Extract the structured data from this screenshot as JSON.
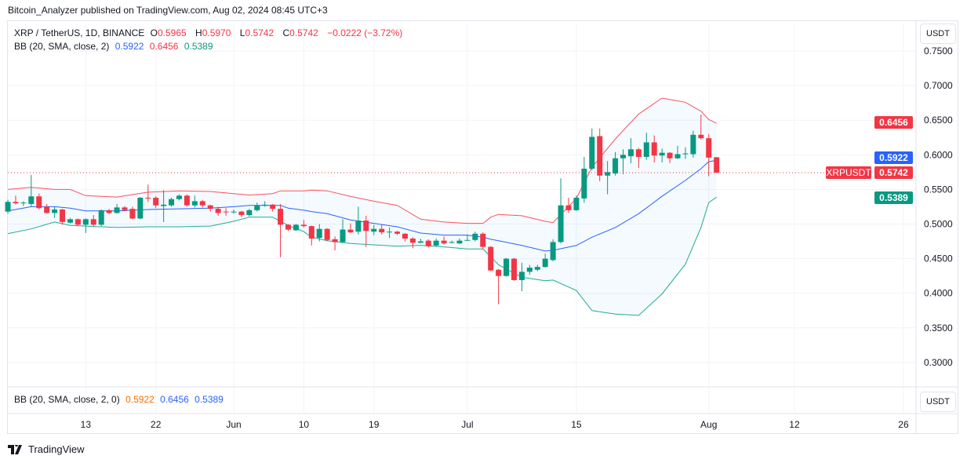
{
  "publisher": "Bitcoin_Analyzer published on TradingView.com, Aug 02, 2024 08:45 UTC+3",
  "legend": {
    "symbol": "XRP / TetherUS, 1D, BINANCE",
    "o_label": "O",
    "o": "0.5965",
    "h_label": "H",
    "h": "0.5970",
    "l_label": "L",
    "l": "0.5742",
    "c_label": "C",
    "c": "0.5742",
    "change": "−0.0222 (−3.72%)",
    "bb_name": "BB (20, SMA, close, 2)",
    "bb_basis": "0.5922",
    "bb_upper": "0.6456",
    "bb_lower": "0.5389"
  },
  "lower_pane": {
    "bb_name": "BB (20, SMA, close, 2, 0)",
    "bb_basis": "0.5922",
    "bb_upper": "0.6456",
    "bb_lower": "0.5389"
  },
  "currency_button": "USDT",
  "symbol_label": "XRPUSDT",
  "price_labels": {
    "upper": "0.6456",
    "basis": "0.5922",
    "last": "0.5742",
    "lower": "0.5389"
  },
  "footer_brand": "TradingView",
  "colors": {
    "up": "#089981",
    "down": "#f23645",
    "basis": "#2962ff",
    "upper": "#f7525f",
    "lower": "#22ab94",
    "grid": "#f0f3fa"
  },
  "chart_data": {
    "type": "candlestick",
    "title": "XRP / TetherUS, 1D, BINANCE",
    "ylim": [
      0.27,
      0.77
    ],
    "grid": true,
    "yticks": [
      "0.7500",
      "0.7000",
      "0.6500",
      "0.6000",
      "0.5500",
      "0.5000",
      "0.4500",
      "0.4000",
      "0.3500",
      "0.3000"
    ],
    "xticks": [
      {
        "date": "2024-05-13",
        "label": "13"
      },
      {
        "date": "2024-05-22",
        "label": "22"
      },
      {
        "date": "2024-06-01",
        "label": "Jun"
      },
      {
        "date": "2024-06-10",
        "label": "10"
      },
      {
        "date": "2024-06-19",
        "label": "19"
      },
      {
        "date": "2024-07-01",
        "label": "Jul"
      },
      {
        "date": "2024-07-15",
        "label": "15"
      },
      {
        "date": "2024-08-01",
        "label": "Aug"
      },
      {
        "date": "2024-08-12",
        "label": "12"
      },
      {
        "date": "2024-08-26",
        "label": "26"
      }
    ],
    "last_price": 0.5742,
    "candles_columns": [
      "date",
      "open",
      "high",
      "low",
      "close"
    ],
    "candles": [
      [
        "2024-05-03",
        0.518,
        0.535,
        0.515,
        0.532
      ],
      [
        "2024-05-04",
        0.532,
        0.541,
        0.528,
        0.53
      ],
      [
        "2024-05-05",
        0.53,
        0.533,
        0.526,
        0.531
      ],
      [
        "2024-05-06",
        0.529,
        0.571,
        0.525,
        0.54
      ],
      [
        "2024-05-07",
        0.54,
        0.544,
        0.521,
        0.523
      ],
      [
        "2024-05-08",
        0.525,
        0.529,
        0.515,
        0.516
      ],
      [
        "2024-05-09",
        0.516,
        0.525,
        0.509,
        0.521
      ],
      [
        "2024-05-10",
        0.521,
        0.522,
        0.499,
        0.503
      ],
      [
        "2024-05-11",
        0.502,
        0.509,
        0.501,
        0.507
      ],
      [
        "2024-05-12",
        0.507,
        0.508,
        0.497,
        0.499
      ],
      [
        "2024-05-13",
        0.499,
        0.508,
        0.487,
        0.507
      ],
      [
        "2024-05-14",
        0.507,
        0.513,
        0.497,
        0.499
      ],
      [
        "2024-05-15",
        0.499,
        0.521,
        0.497,
        0.52
      ],
      [
        "2024-05-16",
        0.52,
        0.522,
        0.514,
        0.516
      ],
      [
        "2024-05-17",
        0.516,
        0.529,
        0.515,
        0.524
      ],
      [
        "2024-05-18",
        0.524,
        0.526,
        0.518,
        0.52
      ],
      [
        "2024-05-19",
        0.522,
        0.525,
        0.507,
        0.508
      ],
      [
        "2024-05-20",
        0.508,
        0.539,
        0.507,
        0.538
      ],
      [
        "2024-05-21",
        0.538,
        0.557,
        0.532,
        0.537
      ],
      [
        "2024-05-22",
        0.538,
        0.54,
        0.523,
        0.527
      ],
      [
        "2024-05-23",
        0.526,
        0.549,
        0.503,
        0.528
      ],
      [
        "2024-05-24",
        0.527,
        0.538,
        0.525,
        0.536
      ],
      [
        "2024-05-25",
        0.536,
        0.543,
        0.534,
        0.541
      ],
      [
        "2024-05-26",
        0.541,
        0.543,
        0.525,
        0.527
      ],
      [
        "2024-05-27",
        0.527,
        0.541,
        0.524,
        0.533
      ],
      [
        "2024-05-28",
        0.533,
        0.535,
        0.524,
        0.527
      ],
      [
        "2024-05-29",
        0.527,
        0.528,
        0.518,
        0.522
      ],
      [
        "2024-05-30",
        0.522,
        0.525,
        0.512,
        0.516
      ],
      [
        "2024-05-31",
        0.518,
        0.523,
        0.512,
        0.517
      ],
      [
        "2024-06-01",
        0.517,
        0.521,
        0.515,
        0.518
      ],
      [
        "2024-06-02",
        0.518,
        0.519,
        0.51,
        0.513
      ],
      [
        "2024-06-03",
        0.513,
        0.522,
        0.511,
        0.52
      ],
      [
        "2024-06-04",
        0.52,
        0.531,
        0.518,
        0.527
      ],
      [
        "2024-06-05",
        0.527,
        0.533,
        0.525,
        0.528
      ],
      [
        "2024-06-06",
        0.528,
        0.529,
        0.518,
        0.522
      ],
      [
        "2024-06-07",
        0.522,
        0.529,
        0.452,
        0.499
      ],
      [
        "2024-06-08",
        0.499,
        0.5,
        0.49,
        0.492
      ],
      [
        "2024-06-09",
        0.491,
        0.5,
        0.49,
        0.499
      ],
      [
        "2024-06-10",
        0.499,
        0.506,
        0.495,
        0.497
      ],
      [
        "2024-06-11",
        0.497,
        0.498,
        0.469,
        0.479
      ],
      [
        "2024-06-12",
        0.48,
        0.5,
        0.475,
        0.493
      ],
      [
        "2024-06-13",
        0.493,
        0.494,
        0.475,
        0.477
      ],
      [
        "2024-06-14",
        0.478,
        0.482,
        0.462,
        0.474
      ],
      [
        "2024-06-15",
        0.474,
        0.507,
        0.473,
        0.492
      ],
      [
        "2024-06-16",
        0.492,
        0.501,
        0.487,
        0.488
      ],
      [
        "2024-06-17",
        0.489,
        0.525,
        0.485,
        0.505
      ],
      [
        "2024-06-18",
        0.505,
        0.512,
        0.467,
        0.49
      ],
      [
        "2024-06-19",
        0.489,
        0.499,
        0.484,
        0.493
      ],
      [
        "2024-06-20",
        0.493,
        0.499,
        0.485,
        0.488
      ],
      [
        "2024-06-21",
        0.488,
        0.495,
        0.48,
        0.489
      ],
      [
        "2024-06-22",
        0.489,
        0.49,
        0.484,
        0.486
      ],
      [
        "2024-06-23",
        0.486,
        0.487,
        0.475,
        0.479
      ],
      [
        "2024-06-24",
        0.479,
        0.481,
        0.465,
        0.473
      ],
      [
        "2024-06-25",
        0.473,
        0.479,
        0.472,
        0.475
      ],
      [
        "2024-06-26",
        0.476,
        0.478,
        0.466,
        0.468
      ],
      [
        "2024-06-27",
        0.469,
        0.479,
        0.467,
        0.476
      ],
      [
        "2024-06-28",
        0.476,
        0.482,
        0.47,
        0.472
      ],
      [
        "2024-06-29",
        0.473,
        0.476,
        0.472,
        0.474
      ],
      [
        "2024-06-30",
        0.472,
        0.479,
        0.471,
        0.476
      ],
      [
        "2024-07-01",
        0.477,
        0.485,
        0.476,
        0.477
      ],
      [
        "2024-07-02",
        0.477,
        0.489,
        0.475,
        0.486
      ],
      [
        "2024-07-03",
        0.486,
        0.488,
        0.464,
        0.467
      ],
      [
        "2024-07-04",
        0.467,
        0.468,
        0.432,
        0.433
      ],
      [
        "2024-07-05",
        0.434,
        0.435,
        0.384,
        0.425
      ],
      [
        "2024-07-06",
        0.425,
        0.451,
        0.424,
        0.45
      ],
      [
        "2024-07-07",
        0.45,
        0.451,
        0.418,
        0.419
      ],
      [
        "2024-07-08",
        0.419,
        0.444,
        0.403,
        0.431
      ],
      [
        "2024-07-09",
        0.431,
        0.441,
        0.427,
        0.437
      ],
      [
        "2024-07-10",
        0.434,
        0.441,
        0.432,
        0.438
      ],
      [
        "2024-07-11",
        0.438,
        0.457,
        0.437,
        0.45
      ],
      [
        "2024-07-12",
        0.448,
        0.478,
        0.446,
        0.474
      ],
      [
        "2024-07-13",
        0.474,
        0.566,
        0.472,
        0.527
      ],
      [
        "2024-07-14",
        0.527,
        0.538,
        0.516,
        0.52
      ],
      [
        "2024-07-15",
        0.52,
        0.541,
        0.519,
        0.538
      ],
      [
        "2024-07-16",
        0.537,
        0.597,
        0.531,
        0.58
      ],
      [
        "2024-07-17",
        0.58,
        0.638,
        0.578,
        0.626
      ],
      [
        "2024-07-18",
        0.627,
        0.638,
        0.562,
        0.57
      ],
      [
        "2024-07-19",
        0.57,
        0.591,
        0.543,
        0.575
      ],
      [
        "2024-07-20",
        0.573,
        0.604,
        0.57,
        0.595
      ],
      [
        "2024-07-21",
        0.595,
        0.608,
        0.572,
        0.6
      ],
      [
        "2024-07-22",
        0.598,
        0.624,
        0.588,
        0.608
      ],
      [
        "2024-07-23",
        0.608,
        0.61,
        0.581,
        0.597
      ],
      [
        "2024-07-24",
        0.597,
        0.632,
        0.593,
        0.618
      ],
      [
        "2024-07-25",
        0.618,
        0.628,
        0.589,
        0.599
      ],
      [
        "2024-07-26",
        0.599,
        0.609,
        0.589,
        0.603
      ],
      [
        "2024-07-27",
        0.603,
        0.604,
        0.588,
        0.595
      ],
      [
        "2024-07-28",
        0.595,
        0.613,
        0.594,
        0.601
      ],
      [
        "2024-07-29",
        0.602,
        0.611,
        0.594,
        0.602
      ],
      [
        "2024-07-30",
        0.601,
        0.635,
        0.596,
        0.629
      ],
      [
        "2024-07-31",
        0.629,
        0.658,
        0.622,
        0.624
      ],
      [
        "2024-08-01",
        0.624,
        0.63,
        0.569,
        0.596
      ],
      [
        "2024-08-02",
        0.5965,
        0.597,
        0.5742,
        0.5742
      ]
    ],
    "bollinger_columns": [
      "date",
      "upper",
      "basis",
      "lower"
    ],
    "bollinger": [
      [
        "2024-05-03",
        0.55,
        0.519,
        0.486
      ],
      [
        "2024-05-06",
        0.553,
        0.525,
        0.493
      ],
      [
        "2024-05-09",
        0.55,
        0.525,
        0.503
      ],
      [
        "2024-05-11",
        0.55,
        0.523,
        0.498
      ],
      [
        "2024-05-13",
        0.541,
        0.519,
        0.497
      ],
      [
        "2024-05-17",
        0.539,
        0.519,
        0.495
      ],
      [
        "2024-05-21",
        0.546,
        0.521,
        0.496
      ],
      [
        "2024-05-25",
        0.548,
        0.522,
        0.496
      ],
      [
        "2024-05-29",
        0.547,
        0.523,
        0.497
      ],
      [
        "2024-06-01",
        0.544,
        0.525,
        0.504
      ],
      [
        "2024-06-03",
        0.542,
        0.527,
        0.51
      ],
      [
        "2024-06-06",
        0.544,
        0.527,
        0.51
      ],
      [
        "2024-06-07",
        0.548,
        0.527,
        0.504
      ],
      [
        "2024-06-08",
        0.548,
        0.523,
        0.498
      ],
      [
        "2024-06-10",
        0.548,
        0.52,
        0.489
      ],
      [
        "2024-06-11",
        0.549,
        0.518,
        0.481
      ],
      [
        "2024-06-13",
        0.548,
        0.515,
        0.476
      ],
      [
        "2024-06-16",
        0.54,
        0.506,
        0.472
      ],
      [
        "2024-06-19",
        0.533,
        0.501,
        0.47
      ],
      [
        "2024-06-22",
        0.527,
        0.496,
        0.468
      ],
      [
        "2024-06-25",
        0.507,
        0.487,
        0.469
      ],
      [
        "2024-06-28",
        0.503,
        0.484,
        0.467
      ],
      [
        "2024-07-01",
        0.501,
        0.484,
        0.464
      ],
      [
        "2024-07-03",
        0.501,
        0.481,
        0.464
      ],
      [
        "2024-07-04",
        0.51,
        0.478,
        0.453
      ],
      [
        "2024-07-05",
        0.514,
        0.476,
        0.441
      ],
      [
        "2024-07-08",
        0.512,
        0.469,
        0.423
      ],
      [
        "2024-07-11",
        0.504,
        0.461,
        0.418
      ],
      [
        "2024-07-12",
        0.502,
        0.462,
        0.419
      ],
      [
        "2024-07-15",
        0.537,
        0.469,
        0.404
      ],
      [
        "2024-07-17",
        0.582,
        0.481,
        0.375
      ],
      [
        "2024-07-20",
        0.623,
        0.495,
        0.37
      ],
      [
        "2024-07-23",
        0.659,
        0.515,
        0.368
      ],
      [
        "2024-07-26",
        0.682,
        0.54,
        0.399
      ],
      [
        "2024-07-29",
        0.676,
        0.563,
        0.442
      ],
      [
        "2024-07-31",
        0.663,
        0.58,
        0.495
      ],
      [
        "2024-08-01",
        0.651,
        0.59,
        0.531
      ],
      [
        "2024-08-02",
        0.6456,
        0.5922,
        0.5389
      ]
    ]
  }
}
